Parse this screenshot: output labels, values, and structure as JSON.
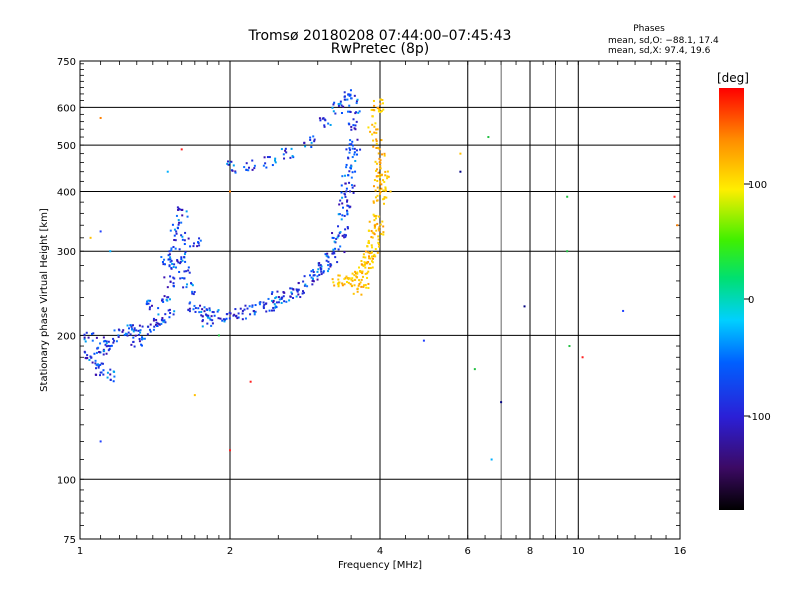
{
  "chart_data": {
    "type": "scatter",
    "title": "Tromsø 20180208 07:44:00–07:45:43",
    "subtitle": "RwPretec (8p)",
    "xlabel": "Frequency [MHz]",
    "ylabel": "Stationary phase Virtual Height [km]",
    "x_scale": "log",
    "y_scale": "log",
    "xlim": [
      1,
      16
    ],
    "ylim": [
      75,
      750
    ],
    "x_ticks": [
      1,
      2,
      4,
      6,
      8,
      10,
      16
    ],
    "x_tick_labels": [
      "1",
      "2",
      "4",
      "6",
      "8",
      "10",
      "16"
    ],
    "y_ticks": [
      75,
      100,
      200,
      300,
      400,
      500,
      600,
      750
    ],
    "y_tick_labels": [
      "75",
      "100",
      "200",
      "300",
      "400",
      "500",
      "600",
      "750"
    ],
    "grid": true,
    "phases_box": {
      "title": "Phases",
      "line_o": "mean, sd,O: −88.1, 17.4",
      "line_x": "mean, sd,X:  97.4, 19.6"
    },
    "colorbar": {
      "label": "[deg]",
      "range": [
        -180,
        180
      ],
      "ticks": [
        100,
        0,
        -100
      ],
      "tick_labels": [
        "100",
        "0",
        "-100"
      ]
    },
    "clusters": [
      {
        "mode": "O",
        "phase_mean": -88.1,
        "phase_sd": 17.4,
        "description": "blue O-mode trace",
        "points": [
          [
            1.05,
            180
          ],
          [
            1.08,
            175
          ],
          [
            1.1,
            185
          ],
          [
            1.12,
            190
          ],
          [
            1.15,
            195
          ],
          [
            1.2,
            200
          ],
          [
            1.25,
            205
          ],
          [
            1.3,
            195
          ],
          [
            1.35,
            200
          ],
          [
            1.4,
            210
          ],
          [
            1.45,
            215
          ],
          [
            1.5,
            220
          ],
          [
            1.5,
            240
          ],
          [
            1.52,
            260
          ],
          [
            1.55,
            280
          ],
          [
            1.55,
            300
          ],
          [
            1.58,
            320
          ],
          [
            1.6,
            290
          ],
          [
            1.62,
            270
          ],
          [
            1.65,
            250
          ],
          [
            1.7,
            230
          ],
          [
            1.75,
            225
          ],
          [
            1.8,
            222
          ],
          [
            1.9,
            220
          ],
          [
            2.0,
            220
          ],
          [
            2.1,
            222
          ],
          [
            2.2,
            225
          ],
          [
            2.3,
            228
          ],
          [
            2.4,
            232
          ],
          [
            2.5,
            235
          ],
          [
            2.6,
            240
          ],
          [
            2.7,
            245
          ],
          [
            2.8,
            252
          ],
          [
            2.9,
            260
          ],
          [
            3.0,
            268
          ],
          [
            3.1,
            278
          ],
          [
            3.2,
            290
          ],
          [
            3.3,
            305
          ],
          [
            3.35,
            330
          ],
          [
            3.4,
            360
          ],
          [
            3.45,
            400
          ],
          [
            3.5,
            450
          ],
          [
            3.5,
            500
          ],
          [
            3.55,
            550
          ],
          [
            3.55,
            600
          ],
          [
            3.5,
            640
          ],
          [
            3.4,
            620
          ],
          [
            3.3,
            600
          ],
          [
            3.1,
            560
          ],
          [
            2.9,
            510
          ],
          [
            2.6,
            480
          ],
          [
            2.4,
            460
          ],
          [
            2.2,
            455
          ],
          [
            2.0,
            450
          ],
          [
            1.05,
            200
          ],
          [
            1.1,
            170
          ],
          [
            1.15,
            165
          ],
          [
            1.3,
            210
          ],
          [
            1.4,
            230
          ],
          [
            1.5,
            290
          ],
          [
            1.55,
            340
          ],
          [
            1.6,
            360
          ],
          [
            1.7,
            310
          ],
          [
            1.8,
            215
          ],
          [
            2.5,
            240
          ],
          [
            3.0,
            275
          ],
          [
            3.3,
            320
          ],
          [
            3.45,
            420
          ],
          [
            3.55,
            480
          ],
          [
            3.4,
            380
          ]
        ]
      },
      {
        "mode": "X",
        "phase_mean": 97.4,
        "phase_sd": 19.6,
        "description": "yellow/orange X-mode trace",
        "points": [
          [
            3.3,
            255
          ],
          [
            3.4,
            260
          ],
          [
            3.5,
            262
          ],
          [
            3.6,
            265
          ],
          [
            3.7,
            270
          ],
          [
            3.75,
            280
          ],
          [
            3.8,
            290
          ],
          [
            3.85,
            300
          ],
          [
            3.9,
            315
          ],
          [
            3.95,
            330
          ],
          [
            4.0,
            350
          ],
          [
            4.0,
            380
          ],
          [
            4.05,
            410
          ],
          [
            4.05,
            440
          ],
          [
            4.0,
            470
          ],
          [
            3.95,
            500
          ],
          [
            3.9,
            540
          ],
          [
            3.95,
            580
          ],
          [
            4.0,
            610
          ],
          [
            3.6,
            250
          ],
          [
            3.7,
            255
          ],
          [
            3.8,
            285
          ],
          [
            3.9,
            340
          ],
          [
            4.0,
            400
          ],
          [
            4.02,
            430
          ]
        ]
      },
      {
        "mode": "noise",
        "description": "scattered isolated points",
        "points": [
          [
            1.1,
            570
          ],
          [
            1.15,
            300
          ],
          [
            1.1,
            330
          ],
          [
            1.05,
            320
          ],
          [
            1.1,
            120
          ],
          [
            1.5,
            440
          ],
          [
            1.6,
            490
          ],
          [
            1.7,
            150
          ],
          [
            1.9,
            200
          ],
          [
            2.0,
            400
          ],
          [
            2.0,
            115
          ],
          [
            2.2,
            160
          ],
          [
            4.9,
            195
          ],
          [
            6.2,
            170
          ],
          [
            6.6,
            520
          ],
          [
            6.7,
            110
          ],
          [
            7.0,
            145
          ],
          [
            7.8,
            230
          ],
          [
            9.5,
            390
          ],
          [
            9.5,
            300
          ],
          [
            9.6,
            190
          ],
          [
            10.2,
            180
          ],
          [
            12.3,
            225
          ],
          [
            15.6,
            390
          ],
          [
            15.8,
            340
          ],
          [
            5.8,
            480
          ],
          [
            5.8,
            440
          ],
          [
            4.2,
            400
          ]
        ]
      }
    ]
  }
}
